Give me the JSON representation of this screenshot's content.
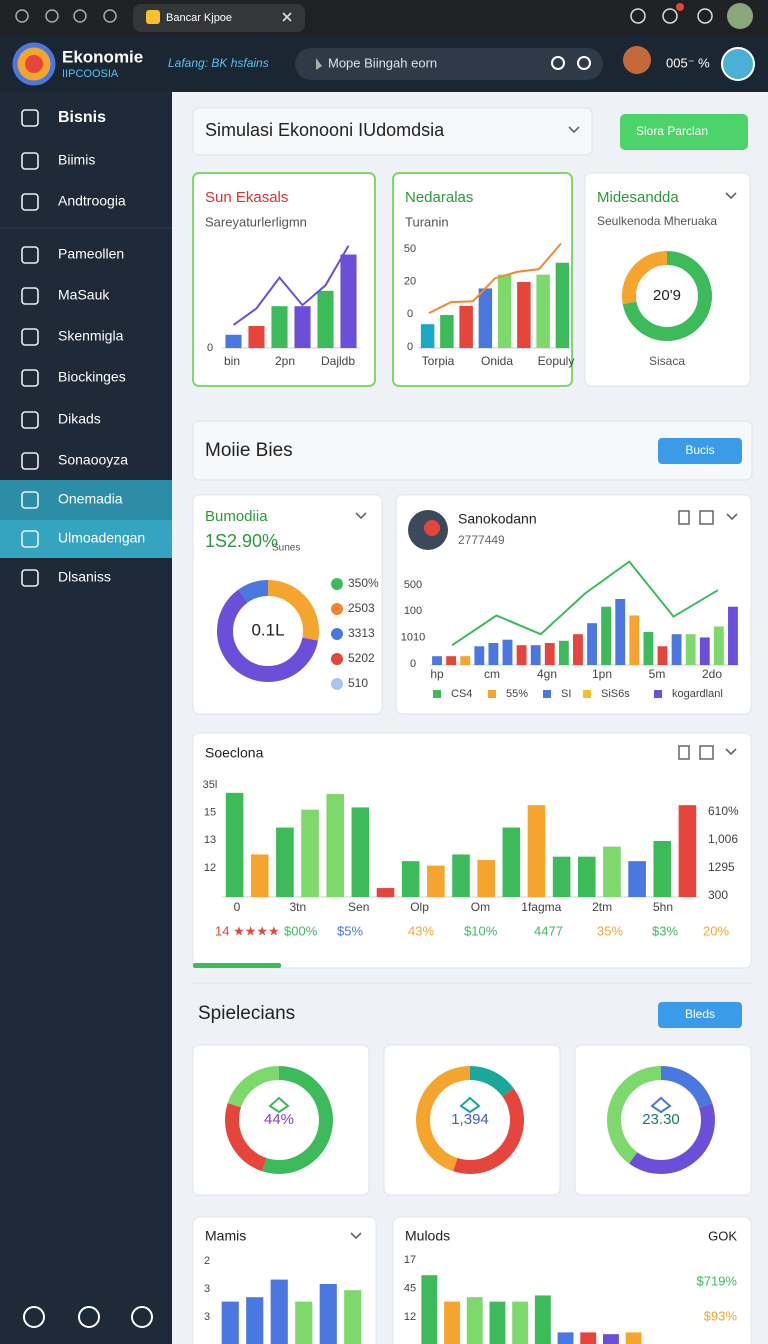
{
  "browser": {
    "tab_title": "Bancar Kjpoe"
  },
  "header": {
    "brand": "Ekonomie",
    "brand_sub": "IIPCOOSIA",
    "tagline": "Lafang: BK hsfains",
    "search": "Mope Biingah eorn",
    "status": "005⁻ %"
  },
  "sidebar": {
    "items": [
      "Bisnis",
      "Biimis",
      "Andtroogia",
      "Pameollen",
      "MaSauk",
      "Skenmigla",
      "Biockinges",
      "Dikads",
      "Sonaooyza",
      "Onemadia",
      "Ulmoadengan",
      "Dlsaniss"
    ]
  },
  "toolbar": {
    "selector": "Simulasi Ekonooni IUdomdsia",
    "action": "Slora Parclan"
  },
  "top_cards": [
    {
      "title": "Sun Ekasals",
      "subtitle": "Sareyaturlerligmn",
      "chart": {
        "ylim": [
          0,
          100
        ],
        "y_labels": [
          "0"
        ],
        "x_labels": [
          "bin",
          "2pn",
          "Dajldb"
        ],
        "bars": [
          12,
          20,
          38,
          38,
          52,
          85
        ],
        "bar_colors": [
          "#4a78e0",
          "#e5453a",
          "#3dbb5a",
          "#6c4fd8",
          "#3dbb5a",
          "#6c4fd8"
        ],
        "line": [
          21,
          36,
          64,
          39,
          57,
          93
        ],
        "line_color": "#6c4fd8"
      }
    },
    {
      "title": "Nedaralas",
      "subtitle": "Turanin",
      "chart": {
        "ylim": [
          0,
          120
        ],
        "y_labels": [
          "50",
          "20",
          "0",
          "0"
        ],
        "x_labels": [
          "Torpia",
          "Onida",
          "Eopuly"
        ],
        "bars": [
          26,
          36,
          46,
          65,
          80,
          72,
          80,
          93
        ],
        "bar_colors": [
          "#1aa8c8",
          "#3dbb5a",
          "#e5453a",
          "#4a78e0",
          "#7dd96b",
          "#e5453a",
          "#7dd96b",
          "#3dbb5a"
        ],
        "line": [
          38,
          50,
          51,
          76,
          83,
          86,
          114
        ],
        "line_color": "#f08a2d"
      }
    },
    {
      "title": "Midesandda",
      "subtitle": "Seulkenoda Mheruaka",
      "footer": "Sisaca",
      "donut": {
        "values": [
          72,
          28
        ],
        "colors": [
          "#3dbb5a",
          "#f5a52d"
        ],
        "center": "20'9"
      }
    }
  ],
  "section2": {
    "title": "Moiie Bies",
    "action": "Bucis",
    "summary": {
      "title": "Bumodiia",
      "value": "1S2.90%",
      "unit": "Sunes",
      "donut": {
        "values": [
          28,
          62,
          10
        ],
        "colors": [
          "#f5a52d",
          "#6c4fd8",
          "#4a78e0"
        ],
        "center": "0.1L"
      },
      "legend": [
        {
          "label": "350%",
          "color": "#3dbb5a"
        },
        {
          "label": "2503",
          "color": "#f5842d"
        },
        {
          "label": "3313",
          "color": "#4a78e0"
        },
        {
          "label": "5202",
          "color": "#e5453a"
        },
        {
          "label": "510",
          "color": "#a8c4f0"
        }
      ]
    },
    "detail": {
      "title": "Sanokodann",
      "subtitle": "2777449",
      "chart": {
        "ylim": [
          0,
          100
        ],
        "y_labels": [
          "500",
          "100",
          "1010",
          "0"
        ],
        "x_labels": [
          "hp",
          "cm",
          "4gn",
          "1pn",
          "5m",
          "2do"
        ],
        "bars": [
          8,
          8,
          8,
          17,
          20,
          23,
          18,
          18,
          20,
          22,
          28,
          38,
          53,
          60,
          45,
          30,
          17,
          28,
          28,
          25,
          35,
          53
        ],
        "bar_colors": [
          "#4a78e0",
          "#e5453a",
          "#f5a52d",
          "#4a78e0",
          "#4a78e0",
          "#4a78e0",
          "#e5453a",
          "#4a78e0",
          "#e5453a",
          "#3dbb5a",
          "#e5453a",
          "#4a78e0",
          "#3dbb5a",
          "#4a78e0",
          "#f5a52d",
          "#3dbb5a",
          "#e5453a",
          "#4a78e0",
          "#7dd96b",
          "#6c4fd8",
          "#7dd96b",
          "#6c4fd8"
        ],
        "line": [
          18,
          45,
          28,
          65,
          94,
          44,
          68
        ],
        "line_color": "#3dbb5a"
      },
      "legend": [
        {
          "label": "CS4",
          "color": "#3dbb5a"
        },
        {
          "label": "55%",
          "color": "#f5a52d"
        },
        {
          "label": "SI",
          "color": "#4a78e0"
        },
        {
          "label": "SiS6s",
          "color": "#f5c22d"
        },
        {
          "label": "kogardlanl",
          "color": "#6c4fd8"
        }
      ]
    }
  },
  "wide_card": {
    "title": "Soeclona",
    "chart": {
      "ylim": [
        0,
        100
      ],
      "y_labels": [
        "35l",
        "15",
        "13",
        "12"
      ],
      "right_labels": [
        "610%",
        "1,006",
        "1295",
        "300"
      ],
      "x_labels": [
        "0",
        "3tn",
        "Sen",
        "Olp",
        "Om",
        "1fagma",
        "2tm",
        "5hn"
      ],
      "bars": [
        93,
        38,
        62,
        78,
        92,
        80,
        8,
        32,
        28,
        38,
        33,
        62,
        82,
        36,
        36,
        45,
        32,
        50,
        82
      ],
      "bar_colors": [
        "#3dbb5a",
        "#f5a52d",
        "#3dbb5a",
        "#7dd96b",
        "#7dd96b",
        "#3dbb5a",
        "#e5453a",
        "#3dbb5a",
        "#f5a52d",
        "#3dbb5a",
        "#f5a52d",
        "#3dbb5a",
        "#f5a52d",
        "#3dbb5a",
        "#3dbb5a",
        "#7dd96b",
        "#4a78e0",
        "#3dbb5a",
        "#e5453a"
      ]
    },
    "footer": [
      "14 ★★★★",
      "$00%",
      "$5%",
      "43%",
      "$10%",
      "4477",
      "35%",
      "$3%",
      "20%"
    ],
    "footer_colors": [
      "#e5453a",
      "#3dbb5a",
      "#4a78e0",
      "#f5a52d",
      "#3dbb5a",
      "#3dbb5a",
      "#f5a52d",
      "#3dbb5a",
      "#f5a52d"
    ]
  },
  "section3": {
    "title": "Spielecians",
    "action": "Bleds",
    "donuts": [
      {
        "values": [
          55,
          25,
          20
        ],
        "colors": [
          "#3dbb5a",
          "#e5453a",
          "#7dd96b"
        ],
        "center": "44%",
        "center_color": "#8a3fc8"
      },
      {
        "values": [
          15,
          40,
          45
        ],
        "colors": [
          "#1aa89a",
          "#e5453a",
          "#f5a52d"
        ],
        "center": "1,394",
        "center_color": "#3f5fc8"
      },
      {
        "values": [
          20,
          40,
          40
        ],
        "colors": [
          "#4a78e0",
          "#6c4fd8",
          "#7dd96b"
        ],
        "center": "23.30",
        "center_color": "#1a7a6a"
      }
    ]
  },
  "bottom_cards": [
    {
      "title": "Mamis",
      "chart": {
        "ylim": [
          0,
          100
        ],
        "y_labels": [
          "2",
          "3",
          "3"
        ],
        "bars": [
          55,
          60,
          80,
          55,
          75,
          68
        ],
        "bar_colors": [
          "#4a78e0",
          "#4a78e0",
          "#4a78e0",
          "#7dd96b",
          "#4a78e0",
          "#7dd96b"
        ]
      }
    },
    {
      "title": "Mulods",
      "badge": "GOK",
      "right_labels": [
        "$719%",
        "$93%"
      ],
      "right_colors": [
        "#3dbb5a",
        "#f5a52d"
      ],
      "chart": {
        "ylim": [
          0,
          100
        ],
        "y_labels": [
          "17",
          "45",
          "12"
        ],
        "bars": [
          85,
          55,
          60,
          55,
          55,
          62,
          20,
          20,
          18,
          20
        ],
        "bar_colors": [
          "#3dbb5a",
          "#f5a52d",
          "#7dd96b",
          "#3dbb5a",
          "#7dd96b",
          "#3dbb5a",
          "#4a78e0",
          "#e5453a",
          "#6c4fd8",
          "#f5a52d"
        ]
      }
    }
  ]
}
